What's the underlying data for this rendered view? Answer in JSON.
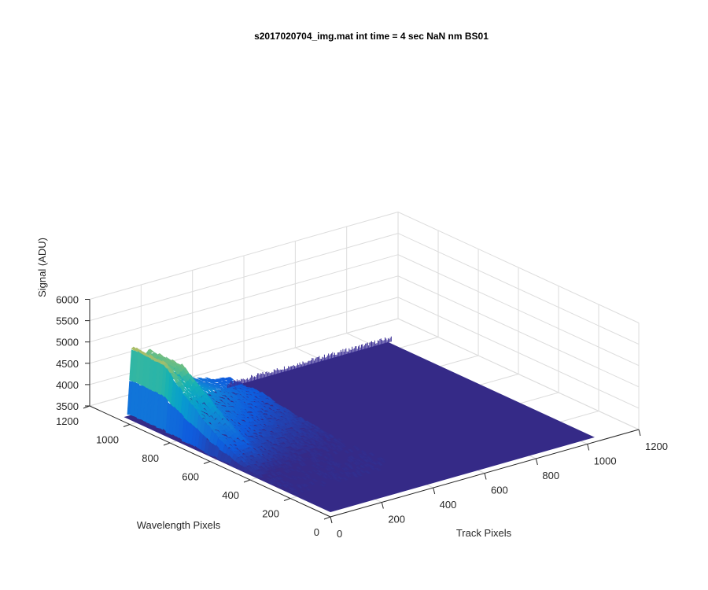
{
  "chart_data": {
    "type": "surface",
    "title": "s2017020704_img.mat int time = 4 sec  NaN nm BS01",
    "xlabel": "Track Pixels",
    "ylabel": "Wavelength Pixels",
    "zlabel": "Signal (ADU)",
    "xlim": [
      0,
      1200
    ],
    "ylim": [
      0,
      1200
    ],
    "zlim": [
      3500,
      6000
    ],
    "xticks": [
      0,
      200,
      400,
      600,
      800,
      1000,
      1200
    ],
    "yticks": [
      0,
      200,
      400,
      600,
      800,
      1000,
      1200
    ],
    "zticks": [
      3500,
      4000,
      4500,
      5000,
      5500,
      6000
    ],
    "xtick_labels": [
      "0",
      "200",
      "400",
      "600",
      "800",
      "1000",
      "1200"
    ],
    "ytick_labels": [
      "0",
      "200",
      "400",
      "600",
      "800",
      "1000",
      "1200"
    ],
    "ztick_labels": [
      "3500",
      "4000",
      "4500",
      "5000",
      "5500",
      "6000"
    ],
    "grid": true,
    "colormap": "parula",
    "baseline_signal": 3620,
    "data_extent": {
      "track_pixels": [
        0,
        1024
      ],
      "wavelength_pixels": [
        0,
        1024
      ]
    },
    "peaks": [
      {
        "track_pixel": 25,
        "wavelength_pixel": 1000,
        "signal": 5350
      },
      {
        "track_pixel": 60,
        "wavelength_pixel": 900,
        "signal": 5520
      },
      {
        "track_pixel": 90,
        "wavelength_pixel": 830,
        "signal": 4330
      }
    ]
  }
}
